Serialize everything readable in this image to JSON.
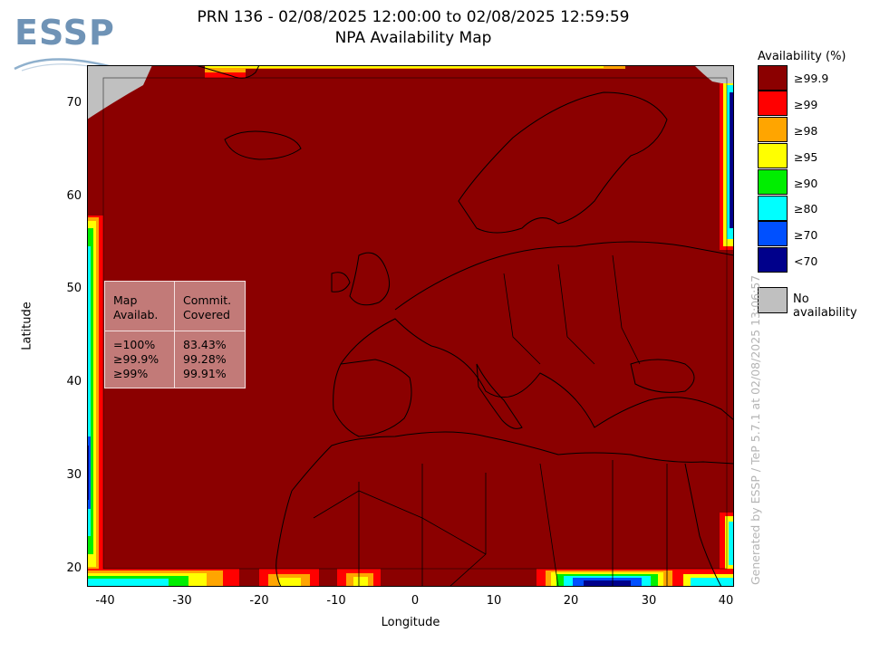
{
  "logo": {
    "text": "ESSP"
  },
  "title": {
    "line1": "PRN 136 - 02/08/2025 12:00:00 to 02/08/2025 12:59:59",
    "line2": "NPA Availability Map"
  },
  "axes": {
    "xlabel": "Longitude",
    "ylabel": "Latitude",
    "x_ticks": [
      "-40",
      "-30",
      "-20",
      "-10",
      "0",
      "10",
      "20",
      "30",
      "40"
    ],
    "y_ticks": [
      "70",
      "60",
      "50",
      "40",
      "30",
      "20"
    ],
    "x_range": [
      -42,
      42
    ],
    "y_range": [
      18,
      74
    ]
  },
  "stats_table": {
    "header_left": "Map\nAvailab.",
    "header_right": "Commit.\nCovered",
    "rows_left": "=100%\n≥99.9%\n≥99%",
    "rows_right": "83.43%\n99.28%\n99.91%"
  },
  "legend": {
    "title": "Availability (%)",
    "items": [
      {
        "label": "≥99.9",
        "color": "#8b0000"
      },
      {
        "label": "≥99",
        "color": "#ff0000"
      },
      {
        "label": "≥98",
        "color": "#ffa500"
      },
      {
        "label": "≥95",
        "color": "#ffff00"
      },
      {
        "label": "≥90",
        "color": "#00ee00"
      },
      {
        "label": "≥80",
        "color": "#00ffff"
      },
      {
        "label": "≥70",
        "color": "#0050ff"
      },
      {
        "label": "<70",
        "color": "#00008b"
      }
    ],
    "no_availability": {
      "label": "No availability",
      "color": "#c0c0c0"
    }
  },
  "footer": {
    "generated": "Generated by ESSP / TeP 5.7.1 at 02/08/2025 13:06:57"
  }
}
